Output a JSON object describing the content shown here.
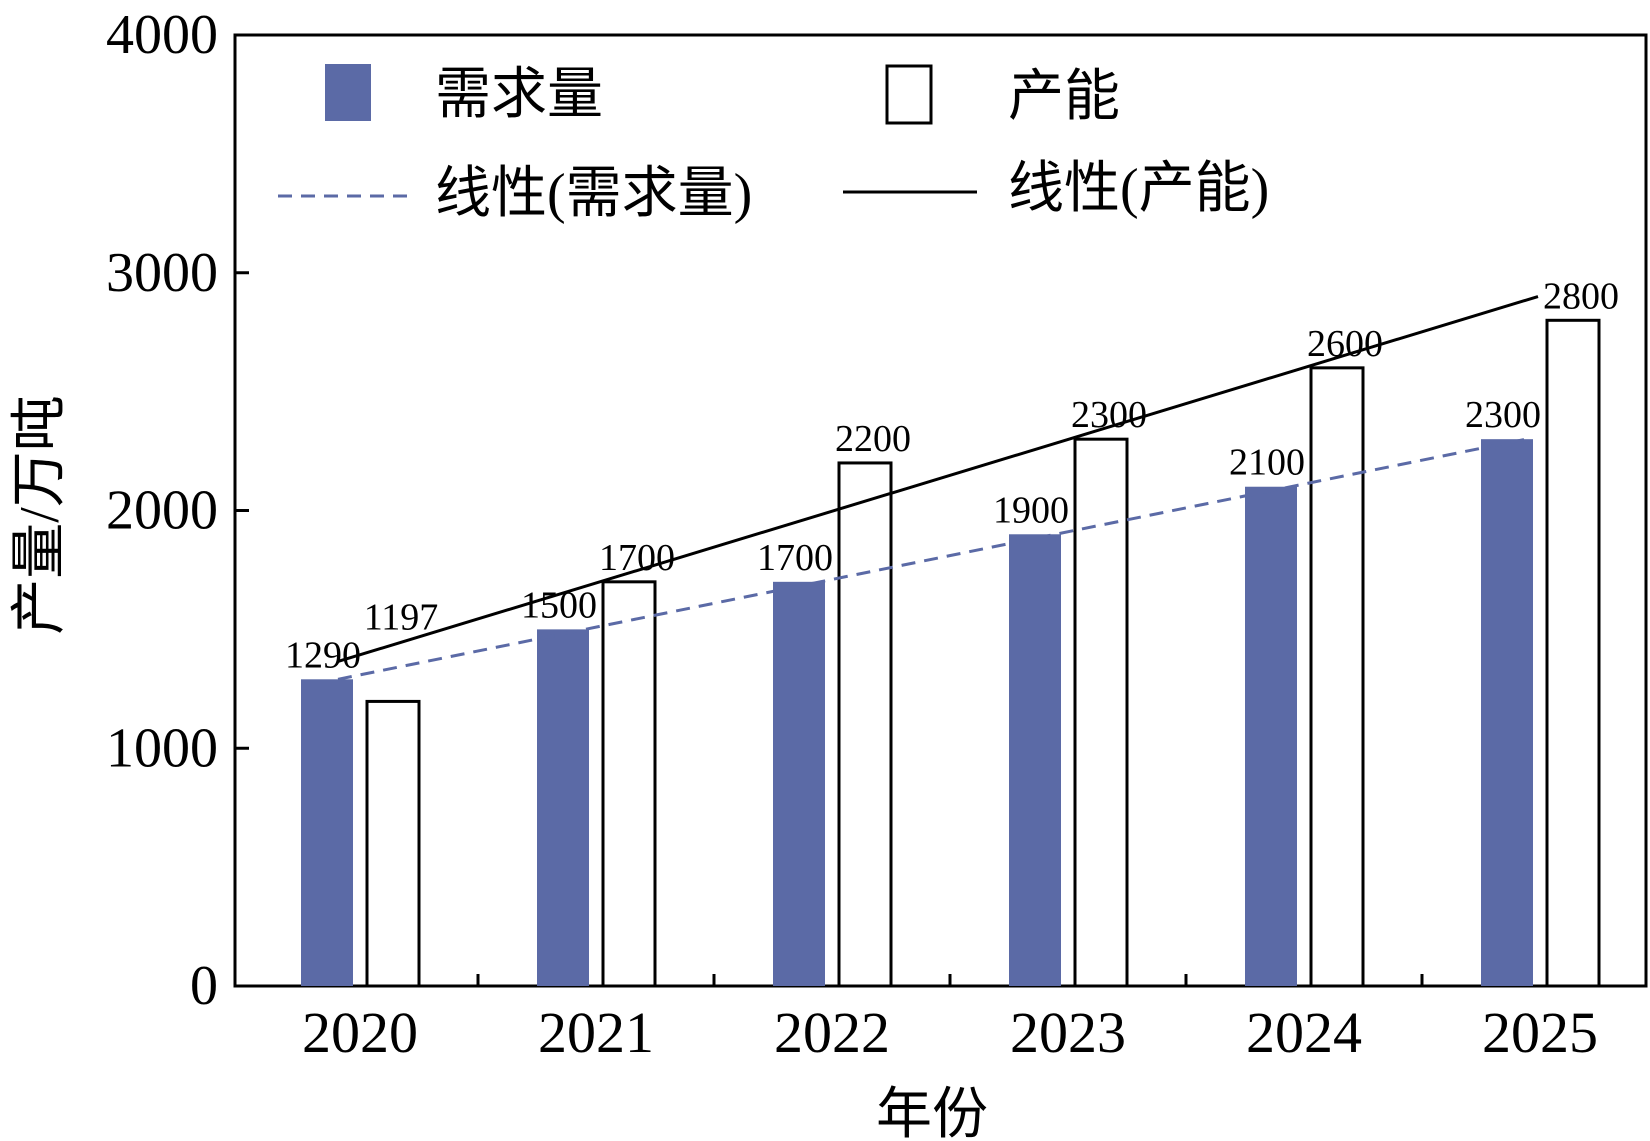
{
  "chart_data": {
    "type": "bar",
    "xlabel": "年份",
    "ylabel": "产量/万吨",
    "ylim": [
      0,
      4000
    ],
    "yticks": [
      0,
      1000,
      2000,
      3000,
      4000
    ],
    "categories": [
      "2020",
      "2021",
      "2022",
      "2023",
      "2024",
      "2025"
    ],
    "series": [
      {
        "name": "需求量",
        "values": [
          1290,
          1500,
          1700,
          1900,
          2100,
          2300
        ],
        "color": "#5b6aa6"
      },
      {
        "name": "产能",
        "values": [
          1197,
          1700,
          2200,
          2300,
          2600,
          2800
        ],
        "color": "#ffffff"
      }
    ],
    "trendlines": [
      {
        "name": "线性(需求量)",
        "style": "dashed",
        "color": "#5b6aa6",
        "start": 1290,
        "end": 2300
      },
      {
        "name": "线性(产能)",
        "style": "solid",
        "color": "#000000",
        "start": 1365,
        "end": 2900
      }
    ],
    "legend_position": "top-left",
    "grid": false
  }
}
